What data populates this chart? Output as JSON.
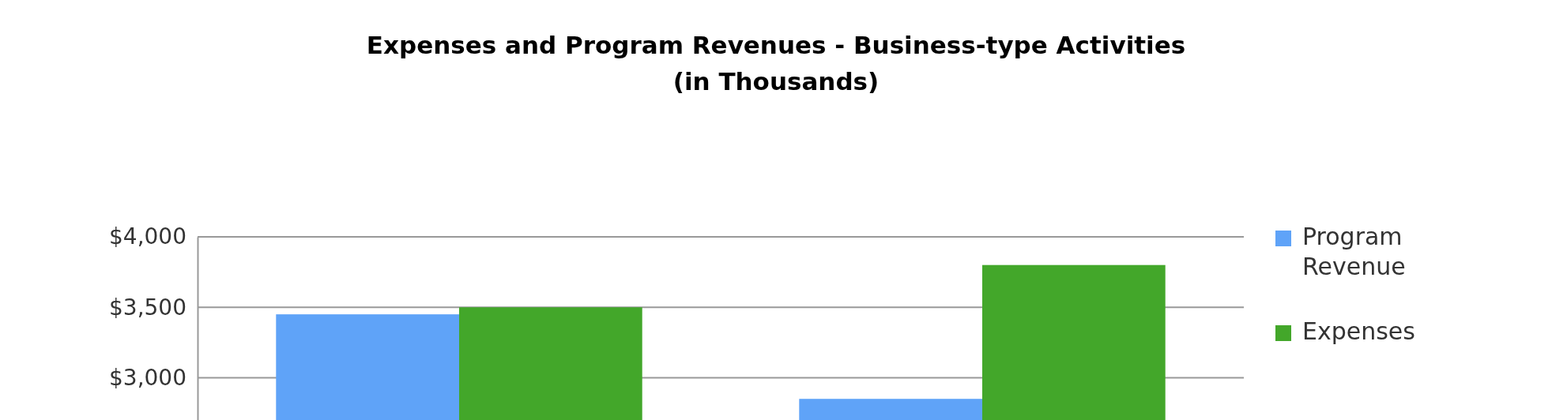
{
  "chart_data": {
    "type": "bar",
    "title": "Expenses and Program Revenues - Business-type Activities\n(in Thousands)",
    "categories": [
      null,
      null
    ],
    "series": [
      {
        "name": "Program Revenue",
        "color": "#5fa3f8",
        "values": [
          3450,
          2850
        ]
      },
      {
        "name": "Expenses",
        "color": "#43a72a",
        "values": [
          3500,
          3800
        ]
      }
    ],
    "ylim": [
      2700,
      4000
    ],
    "yticks": [
      {
        "value": 3000,
        "label": "$3,000"
      },
      {
        "value": 3500,
        "label": "$3,500"
      },
      {
        "value": 4000,
        "label": "$4,000"
      }
    ],
    "grid": "y",
    "legend": "right"
  }
}
